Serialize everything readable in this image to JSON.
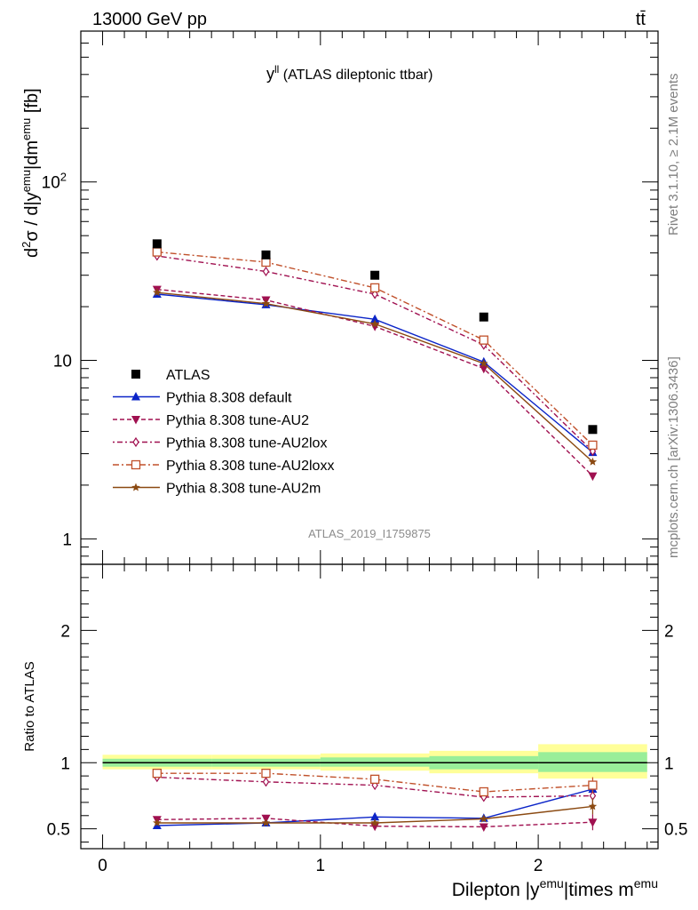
{
  "header": {
    "left": "13000 GeV pp",
    "right": "tt̄"
  },
  "side_labels": {
    "rivet": "Rivet 3.1.10, ≥ 2.1M events",
    "mcplots": "mcplots.cern.ch [arXiv:1306.3436]"
  },
  "analysis_id": "ATLAS_2019_I1759875",
  "chart_data": {
    "type": "scatter",
    "title_main": "y",
    "title_sup": "ll",
    "title_rest": " (ATLAS dileptonic ttbar)",
    "upper": {
      "scale": "log",
      "ylim": [
        0.72,
        700
      ],
      "ylabel": {
        "a": "d",
        "a_sup": "2",
        "b": "σ / d|y",
        "b_sup": "emu",
        "c": "|dm",
        "c_sup": "emu",
        "d": " [fb]"
      },
      "ytick_labels": [
        {
          "value": 1,
          "label": "1"
        },
        {
          "value": 10,
          "label": "10"
        },
        {
          "value": 100,
          "label": "10",
          "sup": "2"
        }
      ]
    },
    "lower": {
      "ylim": [
        0.35,
        2.5
      ],
      "ylabel": "Ratio to ATLAS",
      "ytick_labels": [
        {
          "value": 0.5,
          "label": "0.5"
        },
        {
          "value": 1,
          "label": "1"
        },
        {
          "value": 2,
          "label": "2"
        }
      ],
      "bands": [
        {
          "x": [
            0,
            0.5
          ],
          "green": [
            0.97,
            1.03
          ],
          "yellow": [
            0.95,
            1.06
          ]
        },
        {
          "x": [
            0.5,
            1.0
          ],
          "green": [
            0.97,
            1.03
          ],
          "yellow": [
            0.95,
            1.06
          ]
        },
        {
          "x": [
            1.0,
            1.5
          ],
          "green": [
            0.97,
            1.04
          ],
          "yellow": [
            0.94,
            1.07
          ]
        },
        {
          "x": [
            1.5,
            2.0
          ],
          "green": [
            0.95,
            1.05
          ],
          "yellow": [
            0.92,
            1.09
          ]
        },
        {
          "x": [
            2.0,
            2.5
          ],
          "green": [
            0.93,
            1.08
          ],
          "yellow": [
            0.88,
            1.14
          ]
        }
      ]
    },
    "xlim": [
      -0.1,
      2.55
    ],
    "xlabel": {
      "a": "Dilepton |y",
      "a_sup": "emu",
      "b": "|times m",
      "b_sup": "emu"
    },
    "xtick_labels": [
      {
        "value": 0,
        "label": "0"
      },
      {
        "value": 1,
        "label": "1"
      },
      {
        "value": 2,
        "label": "2"
      }
    ],
    "x": [
      0.25,
      0.75,
      1.25,
      1.75,
      2.25
    ],
    "data": {
      "name": "ATLAS",
      "values": [
        45,
        39,
        30,
        17.5,
        4.1
      ],
      "color": "#000000"
    },
    "series": [
      {
        "name": "Pythia 8.308 default",
        "values": [
          23.5,
          20.5,
          17.0,
          9.8,
          3.05
        ],
        "ratio": [
          0.525,
          0.545,
          0.59,
          0.58,
          0.8
        ],
        "color": "#0b24c8",
        "dash": "",
        "marker": "triangle-up"
      },
      {
        "name": "Pythia 8.308 tune-AU2",
        "values": [
          25.0,
          21.8,
          15.5,
          9.0,
          2.25
        ],
        "ratio": [
          0.57,
          0.58,
          0.52,
          0.515,
          0.55
        ],
        "color": "#a01050",
        "dash": "5,3",
        "marker": "triangle-down"
      },
      {
        "name": "Pythia 8.308 tune-AU2lox",
        "values": [
          38.5,
          31.5,
          23.5,
          12.2,
          3.1
        ],
        "ratio": [
          0.89,
          0.855,
          0.83,
          0.74,
          0.75
        ],
        "color": "#a01050",
        "dash": "2,3,6,3",
        "marker": "diamond"
      },
      {
        "name": "Pythia 8.308 tune-AU2loxx",
        "values": [
          40.5,
          35.5,
          25.5,
          13.0,
          3.35
        ],
        "ratio": [
          0.92,
          0.92,
          0.875,
          0.78,
          0.83
        ],
        "color": "#c0502a",
        "dash": "7,3,2,3",
        "marker": "square-open"
      },
      {
        "name": "Pythia 8.308 tune-AU2m",
        "values": [
          24.0,
          20.8,
          16.0,
          9.6,
          2.7
        ],
        "ratio": [
          0.545,
          0.545,
          0.545,
          0.575,
          0.67
        ],
        "color": "#8b4a12",
        "dash": "",
        "marker": "star"
      }
    ]
  }
}
